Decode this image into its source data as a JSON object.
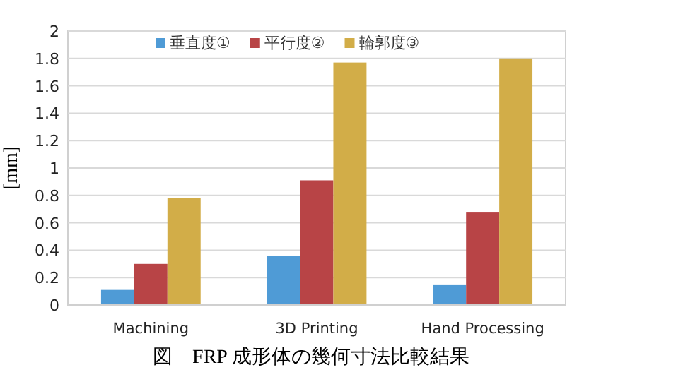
{
  "chart_data": {
    "type": "bar",
    "title": "図　FRP 成形体の幾何寸法比較結果",
    "ylabel": "[mm]",
    "categories": [
      "Machining",
      "3D Printing",
      "Hand Processing"
    ],
    "series": [
      {
        "name": "垂直度①",
        "color": "#4f9bd6",
        "values": [
          0.11,
          0.36,
          0.15
        ]
      },
      {
        "name": "平行度②",
        "color": "#b84446",
        "values": [
          0.3,
          0.91,
          0.68
        ]
      },
      {
        "name": "輪郭度③",
        "color": "#d2ad48",
        "values": [
          0.78,
          1.77,
          1.8
        ]
      }
    ],
    "ylim": [
      0,
      2
    ],
    "yticks": [
      0,
      0.2,
      0.4,
      0.6,
      0.8,
      1,
      1.2,
      1.4,
      1.6,
      1.8,
      2
    ],
    "grid": "y",
    "legend": "top"
  }
}
